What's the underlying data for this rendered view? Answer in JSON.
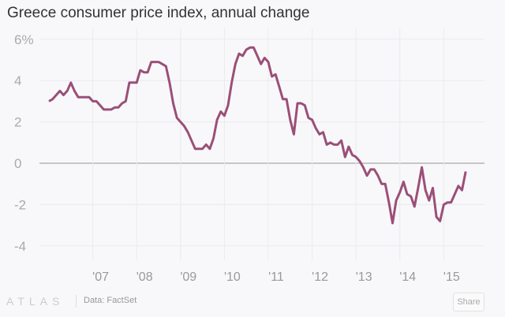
{
  "chart_data": {
    "type": "line",
    "title": "Greece consumer price index, annual change",
    "xlabel": "",
    "ylabel": "",
    "ylim": [
      -4.5,
      6.2
    ],
    "y_ticks": [
      6,
      4,
      2,
      0,
      -2,
      -4
    ],
    "y_tick_labels": [
      "6%",
      "4",
      "2",
      "0",
      "-2",
      "-4"
    ],
    "x_tick_labels": [
      "'07",
      "'08",
      "'09",
      "'10",
      "'11",
      "'12",
      "'13",
      "'14",
      "'15"
    ],
    "x_start": "2006-01",
    "x_frequency": "monthly",
    "grid": true,
    "series": [
      {
        "name": "Greece CPI annual change",
        "color": "#9b4f78",
        "values": [
          3.0,
          3.1,
          3.3,
          3.5,
          3.3,
          3.5,
          3.9,
          3.5,
          3.2,
          3.2,
          3.2,
          3.2,
          3.0,
          3.0,
          2.8,
          2.6,
          2.6,
          2.6,
          2.7,
          2.7,
          2.9,
          3.0,
          3.9,
          3.9,
          3.9,
          4.5,
          4.4,
          4.4,
          4.9,
          4.9,
          4.9,
          4.8,
          4.7,
          3.9,
          2.9,
          2.2,
          2.0,
          1.8,
          1.5,
          1.1,
          0.7,
          0.7,
          0.7,
          0.9,
          0.7,
          1.2,
          2.1,
          2.5,
          2.3,
          2.8,
          3.9,
          4.8,
          5.3,
          5.2,
          5.5,
          5.6,
          5.6,
          5.2,
          4.8,
          5.1,
          4.9,
          4.2,
          4.3,
          3.7,
          3.1,
          3.1,
          2.1,
          1.4,
          2.9,
          2.9,
          2.8,
          2.2,
          2.1,
          1.7,
          1.4,
          1.5,
          0.9,
          1.0,
          0.9,
          0.9,
          1.1,
          0.3,
          0.8,
          0.4,
          0.3,
          0.1,
          -0.2,
          -0.6,
          -0.3,
          -0.3,
          -0.6,
          -1.0,
          -1.0,
          -1.9,
          -2.9,
          -1.8,
          -1.4,
          -0.9,
          -1.5,
          -1.6,
          -2.1,
          -1.2,
          -0.2,
          -1.3,
          -1.8,
          -1.2,
          -2.6,
          -2.8,
          -2.0,
          -1.9,
          -1.9,
          -1.5,
          -1.1,
          -1.3,
          -0.4
        ]
      }
    ]
  },
  "footer": {
    "logo": "ATLAS",
    "source": "Data: FactSet",
    "share_label": "Share"
  }
}
